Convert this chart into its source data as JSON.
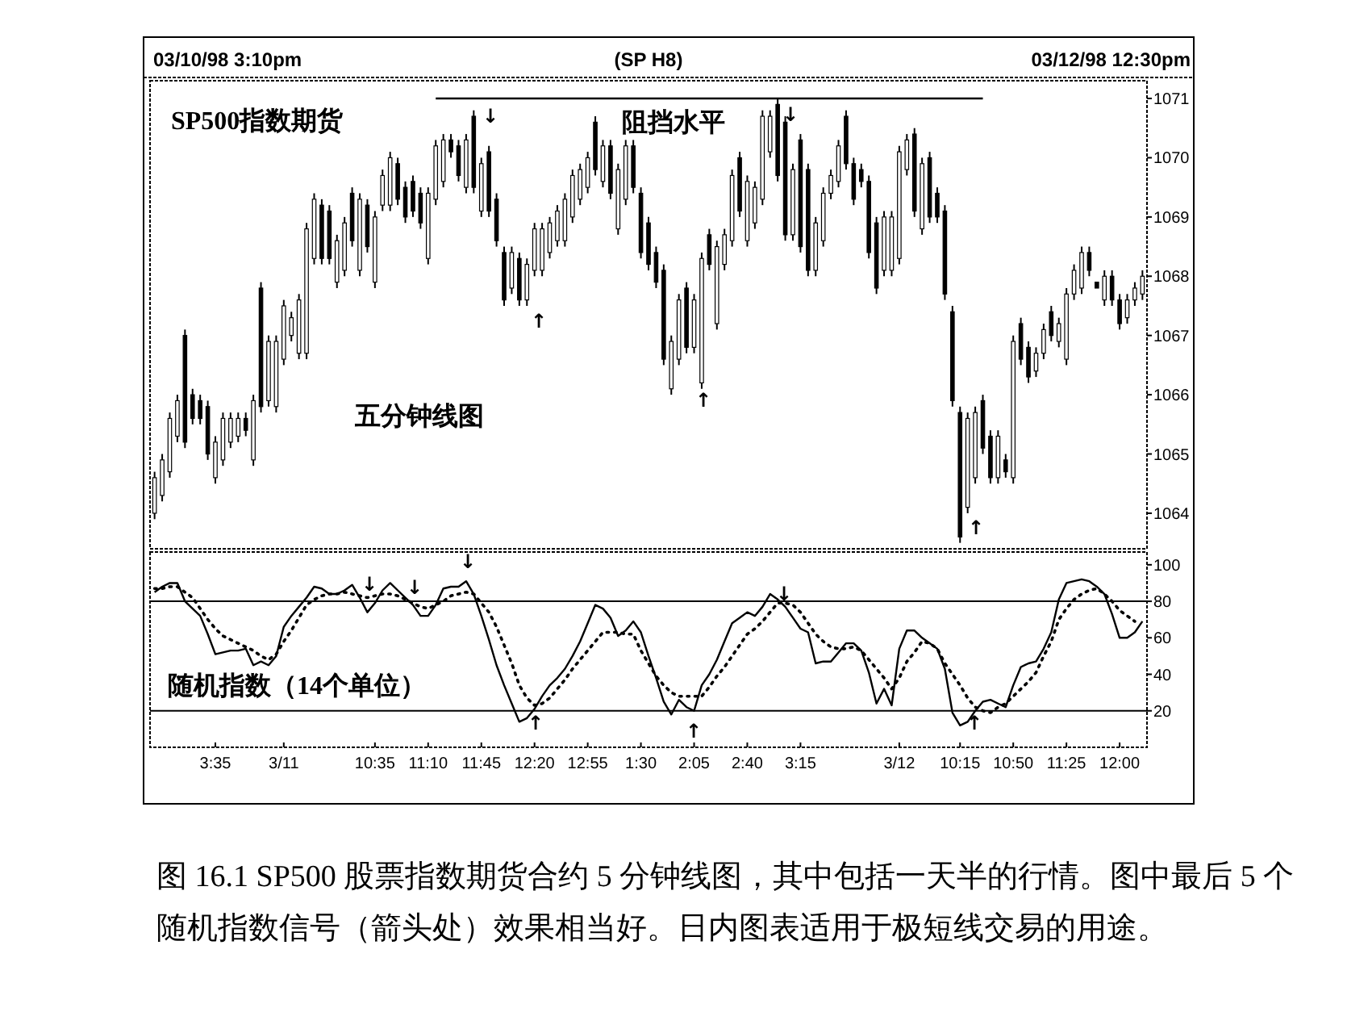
{
  "chart_data": [
    {
      "type": "candlestick",
      "title": "(SP H8)",
      "categories": [
        null,
        null,
        null,
        null,
        null,
        null,
        null,
        null,
        null,
        null,
        null,
        null,
        null,
        null,
        null,
        null,
        null,
        null,
        null,
        null,
        null,
        null,
        null,
        null,
        null,
        null,
        null,
        null,
        null,
        null,
        null,
        null,
        null,
        null,
        null,
        null,
        null,
        null,
        null,
        null,
        null,
        null,
        null,
        null,
        null,
        null,
        null,
        null,
        null,
        null,
        null,
        null,
        null,
        null,
        null,
        null,
        null,
        null,
        null,
        null,
        null,
        null,
        null,
        null,
        null,
        null,
        null,
        null,
        null,
        null,
        null,
        null,
        null,
        null,
        null,
        null,
        null,
        null,
        null,
        null,
        null,
        null,
        null,
        null,
        null,
        null,
        null,
        null,
        null,
        null,
        null,
        null,
        null,
        null,
        null,
        null,
        null,
        null,
        null,
        null,
        null,
        null,
        null,
        null,
        null,
        null,
        null,
        null,
        null,
        null,
        null,
        null,
        null,
        null,
        null,
        null,
        null,
        null,
        null,
        null,
        null,
        null,
        null,
        null,
        null,
        null,
        null,
        null,
        null,
        null,
        null
      ],
      "ohlc": [
        [
          1064.0,
          1064.7,
          1063.9,
          1064.6
        ],
        [
          1064.3,
          1065.0,
          1064.2,
          1064.9
        ],
        [
          1064.7,
          1065.7,
          1064.6,
          1065.6
        ],
        [
          1065.3,
          1066.0,
          1065.2,
          1065.9
        ],
        [
          1067.0,
          1067.1,
          1065.1,
          1065.2
        ],
        [
          1066.0,
          1066.1,
          1065.5,
          1065.6
        ],
        [
          1065.9,
          1066.0,
          1065.5,
          1065.6
        ],
        [
          1065.8,
          1065.9,
          1064.9,
          1065.0
        ],
        [
          1064.6,
          1065.3,
          1064.5,
          1065.2
        ],
        [
          1064.9,
          1065.7,
          1064.8,
          1065.6
        ],
        [
          1065.2,
          1065.7,
          1065.1,
          1065.6
        ],
        [
          1065.3,
          1065.7,
          1065.2,
          1065.6
        ],
        [
          1065.6,
          1065.7,
          1065.3,
          1065.4
        ],
        [
          1064.9,
          1066.0,
          1064.8,
          1065.9
        ],
        [
          1067.8,
          1067.9,
          1065.7,
          1065.8
        ],
        [
          1065.9,
          1067.0,
          1065.8,
          1066.9
        ],
        [
          1065.8,
          1067.0,
          1065.7,
          1066.9
        ],
        [
          1066.6,
          1067.6,
          1066.5,
          1067.5
        ],
        [
          1067.0,
          1067.4,
          1066.9,
          1067.3
        ],
        [
          1066.7,
          1067.7,
          1066.6,
          1067.6
        ],
        [
          1066.7,
          1068.9,
          1066.6,
          1068.8
        ],
        [
          1068.3,
          1069.4,
          1068.2,
          1069.3
        ],
        [
          1069.2,
          1069.3,
          1068.2,
          1068.3
        ],
        [
          1069.1,
          1069.2,
          1068.2,
          1068.3
        ],
        [
          1067.9,
          1068.7,
          1067.8,
          1068.6
        ],
        [
          1068.1,
          1069.0,
          1068.0,
          1068.9
        ],
        [
          1069.4,
          1069.5,
          1068.5,
          1068.6
        ],
        [
          1068.1,
          1069.4,
          1068.0,
          1069.3
        ],
        [
          1069.2,
          1069.3,
          1068.4,
          1068.5
        ],
        [
          1067.9,
          1069.1,
          1067.8,
          1069.0
        ],
        [
          1069.2,
          1069.8,
          1069.1,
          1069.7
        ],
        [
          1069.2,
          1070.1,
          1069.1,
          1070.0
        ],
        [
          1069.9,
          1070.0,
          1069.2,
          1069.3
        ],
        [
          1069.5,
          1069.6,
          1068.9,
          1069.0
        ],
        [
          1069.6,
          1069.7,
          1069.0,
          1069.1
        ],
        [
          1069.4,
          1069.5,
          1068.8,
          1068.9
        ],
        [
          1068.3,
          1069.5,
          1068.2,
          1069.4
        ],
        [
          1069.3,
          1070.3,
          1069.2,
          1070.2
        ],
        [
          1069.6,
          1070.4,
          1069.5,
          1070.3
        ],
        [
          1070.3,
          1070.4,
          1070.0,
          1070.1
        ],
        [
          1070.2,
          1070.3,
          1069.6,
          1069.7
        ],
        [
          1069.5,
          1070.4,
          1069.4,
          1070.3
        ],
        [
          1070.7,
          1070.8,
          1069.4,
          1069.5
        ],
        [
          1069.1,
          1070.0,
          1069.0,
          1069.9
        ],
        [
          1070.1,
          1070.2,
          1069.0,
          1069.1
        ],
        [
          1069.3,
          1069.4,
          1068.5,
          1068.6
        ],
        [
          1068.4,
          1068.5,
          1067.5,
          1067.6
        ],
        [
          1067.8,
          1068.5,
          1067.7,
          1068.4
        ],
        [
          1068.3,
          1068.4,
          1067.5,
          1067.6
        ],
        [
          1067.6,
          1068.3,
          1067.5,
          1068.2
        ],
        [
          1068.1,
          1068.9,
          1068.0,
          1068.8
        ],
        [
          1068.1,
          1068.9,
          1068.0,
          1068.8
        ],
        [
          1068.4,
          1069.0,
          1068.3,
          1068.9
        ],
        [
          1068.6,
          1069.2,
          1068.5,
          1069.1
        ],
        [
          1068.6,
          1069.4,
          1068.5,
          1069.3
        ],
        [
          1069.0,
          1069.8,
          1068.9,
          1069.7
        ],
        [
          1069.3,
          1069.9,
          1069.2,
          1069.8
        ],
        [
          1069.5,
          1070.1,
          1069.4,
          1070.0
        ],
        [
          1070.6,
          1070.7,
          1069.7,
          1069.8
        ],
        [
          1069.6,
          1070.3,
          1069.5,
          1070.2
        ],
        [
          1070.2,
          1070.3,
          1069.3,
          1069.4
        ],
        [
          1068.8,
          1069.9,
          1068.7,
          1069.8
        ],
        [
          1069.3,
          1070.3,
          1069.2,
          1070.2
        ],
        [
          1070.2,
          1070.3,
          1069.4,
          1069.5
        ],
        [
          1069.4,
          1069.5,
          1068.3,
          1068.4
        ],
        [
          1068.9,
          1069.0,
          1068.1,
          1068.2
        ],
        [
          1068.4,
          1068.5,
          1067.8,
          1067.9
        ],
        [
          1068.1,
          1068.2,
          1066.5,
          1066.6
        ],
        [
          1066.1,
          1067.0,
          1066.0,
          1066.9
        ],
        [
          1066.6,
          1067.7,
          1066.5,
          1067.6
        ],
        [
          1067.8,
          1067.9,
          1066.7,
          1066.8
        ],
        [
          1066.8,
          1067.7,
          1066.7,
          1067.6
        ],
        [
          1066.2,
          1068.4,
          1066.1,
          1068.3
        ],
        [
          1068.7,
          1068.8,
          1068.1,
          1068.2
        ],
        [
          1067.2,
          1068.6,
          1067.1,
          1068.5
        ],
        [
          1068.2,
          1068.8,
          1068.1,
          1068.7
        ],
        [
          1068.6,
          1069.8,
          1068.5,
          1069.7
        ],
        [
          1070.0,
          1070.1,
          1069.0,
          1069.1
        ],
        [
          1068.6,
          1069.7,
          1068.5,
          1069.6
        ],
        [
          1068.9,
          1069.6,
          1068.8,
          1069.5
        ],
        [
          1069.3,
          1070.8,
          1069.2,
          1070.7
        ],
        [
          1070.1,
          1070.8,
          1070.0,
          1070.7
        ],
        [
          1070.9,
          1071.0,
          1069.6,
          1069.7
        ],
        [
          1070.6,
          1070.7,
          1068.6,
          1068.7
        ],
        [
          1068.7,
          1069.9,
          1068.6,
          1069.8
        ],
        [
          1070.3,
          1070.4,
          1068.4,
          1068.5
        ],
        [
          1069.8,
          1069.9,
          1068.0,
          1068.1
        ],
        [
          1068.1,
          1069.0,
          1068.0,
          1068.9
        ],
        [
          1068.6,
          1069.5,
          1068.5,
          1069.4
        ],
        [
          1069.4,
          1069.8,
          1069.3,
          1069.7
        ],
        [
          1069.6,
          1070.3,
          1069.5,
          1070.2
        ],
        [
          1070.7,
          1070.8,
          1069.8,
          1069.9
        ],
        [
          1069.9,
          1070.0,
          1069.2,
          1069.3
        ],
        [
          1069.8,
          1069.9,
          1069.5,
          1069.6
        ],
        [
          1069.6,
          1069.7,
          1068.3,
          1068.4
        ],
        [
          1068.9,
          1069.0,
          1067.7,
          1067.8
        ],
        [
          1068.1,
          1069.1,
          1068.0,
          1069.0
        ],
        [
          1068.1,
          1069.1,
          1068.0,
          1069.0
        ],
        [
          1068.3,
          1070.2,
          1068.2,
          1070.1
        ],
        [
          1069.8,
          1070.4,
          1069.7,
          1070.3
        ],
        [
          1070.4,
          1070.5,
          1069.0,
          1069.1
        ],
        [
          1068.8,
          1070.0,
          1068.7,
          1069.9
        ],
        [
          1070.0,
          1070.1,
          1068.9,
          1069.0
        ],
        [
          1069.4,
          1069.5,
          1068.9,
          1069.0
        ],
        [
          1069.1,
          1069.2,
          1067.6,
          1067.7
        ],
        [
          1067.4,
          1067.5,
          1065.8,
          1065.9
        ],
        [
          1065.7,
          1065.8,
          1063.5,
          1063.6
        ],
        [
          1064.1,
          1065.7,
          1064.0,
          1065.6
        ],
        [
          1064.6,
          1065.8,
          1064.5,
          1065.7
        ],
        [
          1065.9,
          1066.0,
          1065.0,
          1065.1
        ],
        [
          1065.3,
          1065.4,
          1064.5,
          1064.6
        ],
        [
          1064.6,
          1065.4,
          1064.5,
          1065.3
        ],
        [
          1064.9,
          1065.0,
          1064.6,
          1064.7
        ],
        [
          1064.6,
          1067.0,
          1064.5,
          1066.9
        ],
        [
          1067.2,
          1067.3,
          1066.5,
          1066.6
        ],
        [
          1066.8,
          1066.9,
          1066.2,
          1066.3
        ],
        [
          1066.4,
          1066.8,
          1066.3,
          1066.7
        ],
        [
          1066.7,
          1067.2,
          1066.6,
          1067.1
        ],
        [
          1067.4,
          1067.5,
          1066.9,
          1067.0
        ],
        [
          1066.9,
          1067.3,
          1066.8,
          1067.2
        ],
        [
          1066.6,
          1067.8,
          1066.5,
          1067.7
        ],
        [
          1067.7,
          1068.2,
          1067.6,
          1068.1
        ],
        [
          1067.8,
          1068.5,
          1067.7,
          1068.4
        ],
        [
          1068.4,
          1068.5,
          1068.0,
          1068.1
        ],
        [
          1067.9,
          1067.9,
          1067.8,
          1067.8
        ],
        [
          1067.6,
          1068.1,
          1067.5,
          1068.0
        ],
        [
          1068.0,
          1068.1,
          1067.5,
          1067.6
        ],
        [
          1067.6,
          1067.7,
          1067.1,
          1067.2
        ],
        [
          1067.3,
          1067.7,
          1067.2,
          1067.6
        ],
        [
          1067.6,
          1067.9,
          1067.5,
          1067.8
        ],
        [
          1067.7,
          1068.1,
          1067.6,
          1068.0
        ]
      ],
      "series": [
        {
          "type": "line",
          "name": "阻挡水平",
          "values": [
            null,
            null,
            null,
            null,
            null,
            null,
            null,
            null,
            null,
            null,
            null,
            null,
            null,
            null,
            null,
            null,
            null,
            null,
            null,
            null,
            null,
            null,
            null,
            null,
            null,
            null,
            null,
            null,
            null,
            null,
            null,
            null,
            null,
            null,
            null,
            null,
            null,
            1071.0,
            1071.0,
            1071.0,
            1071.0,
            1071.0,
            1071.0,
            1071.0,
            1071.0,
            1071.0,
            1071.0,
            1071.0,
            1071.0,
            1071.0,
            1071.0,
            1071.0,
            1071.0,
            1071.0,
            1071.0,
            1071.0,
            1071.0,
            1071.0,
            1071.0,
            1071.0,
            1071.0,
            1071.0,
            1071.0,
            1071.0,
            1071.0,
            1071.0,
            1071.0,
            1071.0,
            1071.0,
            1071.0,
            1071.0,
            1071.0,
            1071.0,
            1071.0,
            1071.0,
            1071.0,
            1071.0,
            1071.0,
            1071.0,
            1071.0,
            1071.0,
            1071.0,
            1071.0,
            1071.0,
            1071.0,
            1071.0,
            1071.0,
            1071.0,
            1071.0,
            1071.0,
            1071.0,
            1071.0,
            1071.0,
            1071.0,
            1071.0,
            1071.0,
            1071.0,
            1071.0,
            1071.0,
            1071.0,
            1071.0,
            1071.0,
            1071.0,
            1071.0,
            1071.0,
            1071.0,
            1071.0,
            1071.0,
            1071.0,
            1071.0,
            null,
            null,
            null,
            null,
            null,
            null,
            null,
            null,
            null,
            null,
            null,
            null,
            null,
            null,
            null,
            null,
            null,
            null,
            null,
            null,
            null
          ],
          "color": "#000000"
        }
      ],
      "ylim": [
        1063.4,
        1071.3
      ],
      "yticks": [
        1064,
        1065,
        1066,
        1067,
        1068,
        1069,
        1070,
        1071
      ],
      "tick_labels": "y",
      "annotations": [
        "03/10/98 3:10pm",
        "03/12/98 12:30pm",
        "SP500指数期货",
        "五分钟线图",
        "↓",
        "↑",
        "↑",
        "↓",
        "↑"
      ]
    },
    {
      "type": "line",
      "categories": [
        null,
        null,
        null,
        null,
        null,
        null,
        null,
        null,
        "3:35",
        null,
        null,
        null,
        null,
        null,
        null,
        null,
        null,
        "3/11",
        null,
        null,
        null,
        null,
        null,
        null,
        null,
        null,
        null,
        null,
        null,
        "10:35",
        null,
        null,
        null,
        null,
        null,
        null,
        "11:10",
        null,
        null,
        null,
        null,
        null,
        null,
        "11:45",
        null,
        null,
        null,
        null,
        null,
        null,
        "12:20",
        null,
        null,
        null,
        null,
        null,
        null,
        "12:55",
        null,
        null,
        null,
        null,
        null,
        null,
        "1:30",
        null,
        null,
        null,
        null,
        null,
        null,
        "2:05",
        null,
        null,
        null,
        null,
        null,
        null,
        "2:40",
        null,
        null,
        null,
        null,
        null,
        null,
        "3:15",
        null,
        null,
        null,
        null,
        null,
        null,
        null,
        null,
        null,
        null,
        null,
        null,
        "3/12",
        null,
        null,
        null,
        null,
        null,
        null,
        null,
        "10:15",
        null,
        null,
        null,
        null,
        null,
        null,
        "10:50",
        null,
        null,
        null,
        null,
        null,
        null,
        "11:25",
        null,
        null,
        null,
        null,
        null,
        null,
        "12:00",
        null,
        null,
        null
      ],
      "series": [
        {
          "values": [
            85,
            88,
            90,
            90,
            80,
            76,
            72,
            62,
            51,
            52,
            53,
            53,
            54,
            45,
            47,
            45,
            50,
            66,
            72,
            77,
            82,
            88,
            87,
            84,
            84,
            86,
            89,
            82,
            74,
            79,
            86,
            90,
            86,
            82,
            78,
            72,
            72,
            78,
            87,
            88,
            88,
            91,
            84,
            72,
            59,
            45,
            34,
            24,
            14,
            16,
            21,
            28,
            34,
            38,
            43,
            50,
            58,
            68,
            78,
            76,
            71,
            61,
            64,
            69,
            63,
            50,
            38,
            25,
            18,
            26,
            22,
            20,
            34,
            40,
            48,
            58,
            68,
            71,
            74,
            72,
            77,
            84,
            81,
            77,
            71,
            65,
            63,
            46,
            47,
            47,
            52,
            57,
            57,
            53,
            41,
            24,
            32,
            23,
            54,
            64,
            64,
            60,
            57,
            54,
            43,
            19,
            12,
            14,
            20,
            25,
            26,
            24,
            22,
            34,
            44,
            46,
            47,
            54,
            63,
            81,
            90,
            91,
            92,
            91,
            88,
            84,
            73,
            60,
            60,
            63,
            69
          ],
          "color": "#000000",
          "line_style": "solid"
        },
        {
          "values": [
            87,
            87,
            88,
            88,
            85,
            82,
            76,
            70,
            65,
            61,
            59,
            57,
            55,
            53,
            50,
            48,
            51,
            58,
            64,
            71,
            78,
            81,
            83,
            84,
            84,
            85,
            84,
            83,
            82,
            83,
            84,
            84,
            83,
            81,
            79,
            77,
            76,
            78,
            80,
            83,
            84,
            85,
            84,
            79,
            74,
            66,
            56,
            46,
            34,
            27,
            23,
            24,
            27,
            32,
            37,
            43,
            48,
            53,
            58,
            63,
            63,
            63,
            62,
            62,
            53,
            46,
            39,
            34,
            30,
            28,
            28,
            28,
            28,
            33,
            39,
            44,
            50,
            56,
            62,
            65,
            69,
            74,
            79,
            79,
            78,
            74,
            68,
            62,
            58,
            55,
            54,
            54,
            55,
            53,
            48,
            43,
            38,
            32,
            38,
            47,
            52,
            58,
            57,
            54,
            46,
            40,
            34,
            27,
            22,
            20,
            19,
            22,
            24,
            28,
            32,
            36,
            41,
            50,
            58,
            70,
            76,
            81,
            84,
            86,
            87,
            84,
            80,
            75,
            72,
            69,
            null
          ],
          "color": "#000000",
          "line_style": "dotted"
        }
      ],
      "ylim": [
        0,
        107
      ],
      "yticks": [
        20,
        40,
        60,
        80,
        100
      ],
      "ref_lines": [
        {
          "axis": "y",
          "value": 80
        },
        {
          "axis": "y",
          "value": 20
        }
      ],
      "annotations": [
        "随机指数（14个单位）",
        "图 16.1  SP500 股票指数期货合约 5 分钟线图，其中包括一天半的行情。图中最后 5 个随机指数信号（箭头处）效果相当好。日内图表适用于极短线交易的用途。",
        "↓",
        "↓",
        "↓",
        "↑",
        "↑",
        "↓",
        "↑"
      ]
    }
  ]
}
